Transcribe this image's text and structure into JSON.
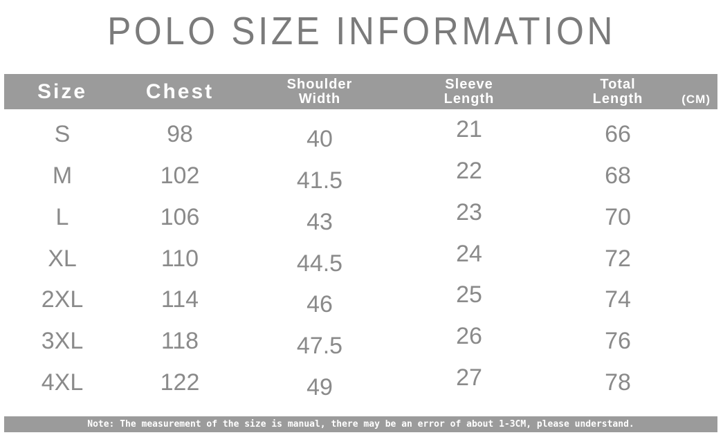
{
  "title": "POLO SIZE INFORMATION",
  "header": {
    "columns": [
      {
        "line1": "Size",
        "line2": ""
      },
      {
        "line1": "Chest",
        "line2": ""
      },
      {
        "line1": "Shoulder",
        "line2": "Width"
      },
      {
        "line1": "Sleeve",
        "line2": "Length"
      },
      {
        "line1": "Total",
        "line2": "Length"
      }
    ],
    "unit_label": "(CM)"
  },
  "table": {
    "rows": [
      {
        "size": "S",
        "chest": "98",
        "shoulder_width": "40",
        "sleeve_length": "21",
        "total_length": "66"
      },
      {
        "size": "M",
        "chest": "102",
        "shoulder_width": "41.5",
        "sleeve_length": "22",
        "total_length": "68"
      },
      {
        "size": "L",
        "chest": "106",
        "shoulder_width": "43",
        "sleeve_length": "23",
        "total_length": "70"
      },
      {
        "size": "XL",
        "chest": "110",
        "shoulder_width": "44.5",
        "sleeve_length": "24",
        "total_length": "72"
      },
      {
        "size": "2XL",
        "chest": "114",
        "shoulder_width": "46",
        "sleeve_length": "25",
        "total_length": "74"
      },
      {
        "size": "3XL",
        "chest": "118",
        "shoulder_width": "47.5",
        "sleeve_length": "26",
        "total_length": "76"
      },
      {
        "size": "4XL",
        "chest": "122",
        "shoulder_width": "49",
        "sleeve_length": "27",
        "total_length": "78"
      }
    ]
  },
  "note": "Note: The measurement of the size is manual, there may be an error of about 1-3CM, please understand.",
  "colors": {
    "bar_bg": "#9b9b9b",
    "bar_text": "#ffffff",
    "title_text": "#7b7b7b",
    "body_text": "#8a8a8a",
    "page_bg": "#ffffff"
  },
  "chart_data": {
    "type": "table",
    "title": "POLO SIZE INFORMATION",
    "unit": "CM",
    "columns": [
      "Size",
      "Chest",
      "Shoulder Width",
      "Sleeve Length",
      "Total Length"
    ],
    "rows": [
      [
        "S",
        98,
        40,
        21,
        66
      ],
      [
        "M",
        102,
        41.5,
        22,
        68
      ],
      [
        "L",
        106,
        43,
        23,
        70
      ],
      [
        "XL",
        110,
        44.5,
        24,
        72
      ],
      [
        "2XL",
        114,
        46,
        25,
        74
      ],
      [
        "3XL",
        118,
        47.5,
        26,
        76
      ],
      [
        "4XL",
        122,
        49,
        27,
        78
      ]
    ],
    "note": "Note: The measurement of the size is manual, there may be an error of about 1-3CM, please understand."
  }
}
